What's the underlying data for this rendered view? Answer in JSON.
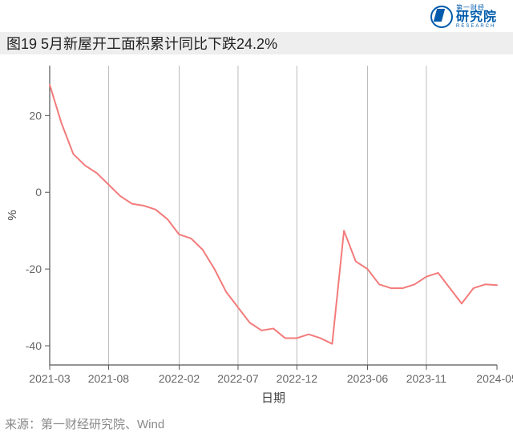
{
  "logo": {
    "supertitle": "第一财经",
    "title": "研究院",
    "subtitle": "RESEARCH"
  },
  "chart": {
    "type": "line",
    "title": "图19 5月新屋开工面积累计同比下跌24.2%",
    "xlabel": "日期",
    "ylabel": "%",
    "background_color": "#ffffff",
    "title_bar_color": "#eeeeee",
    "title_fontsize": 18,
    "label_fontsize": 15,
    "tick_fontsize": 14,
    "line_color": "#f37b7b",
    "line_width": 2,
    "axis_color": "#555555",
    "grid_color": "#bbbbbb",
    "grid_width": 1,
    "text_color": "#666666",
    "ylim": [
      -45,
      33
    ],
    "yticks": [
      -40,
      -20,
      0,
      20
    ],
    "xtick_labels": [
      "2021-03",
      "2021-08",
      "2022-02",
      "2022-07",
      "2022-12",
      "2023-06",
      "2023-11",
      "2024-05"
    ],
    "xtick_positions": [
      0,
      5,
      11,
      16,
      21,
      27,
      32,
      38
    ],
    "x_grid_positions": [
      0,
      5,
      11,
      16,
      21,
      27,
      32
    ],
    "series": {
      "name": "新屋开工面积累计同比",
      "x": [
        0,
        1,
        2,
        3,
        4,
        5,
        6,
        7,
        8,
        9,
        10,
        11,
        12,
        13,
        14,
        15,
        16,
        17,
        18,
        19,
        20,
        21,
        22,
        23,
        24,
        25,
        26,
        27,
        28,
        29,
        30,
        31,
        32,
        33,
        34,
        35,
        36,
        37,
        38
      ],
      "y": [
        28,
        18,
        10,
        7,
        5,
        2,
        -1,
        -3,
        -3.5,
        -4.5,
        -7,
        -11,
        -12,
        -15,
        -20,
        -26,
        -30,
        -34,
        -36,
        -35.5,
        -38,
        -38,
        -37,
        -38,
        -39.5,
        -10,
        -18,
        -20,
        -24,
        -25,
        -25,
        -24,
        -22,
        -21,
        -25,
        -29,
        -25,
        -24,
        -24.2
      ]
    }
  },
  "source": "来源：第一财经研究院、Wind"
}
